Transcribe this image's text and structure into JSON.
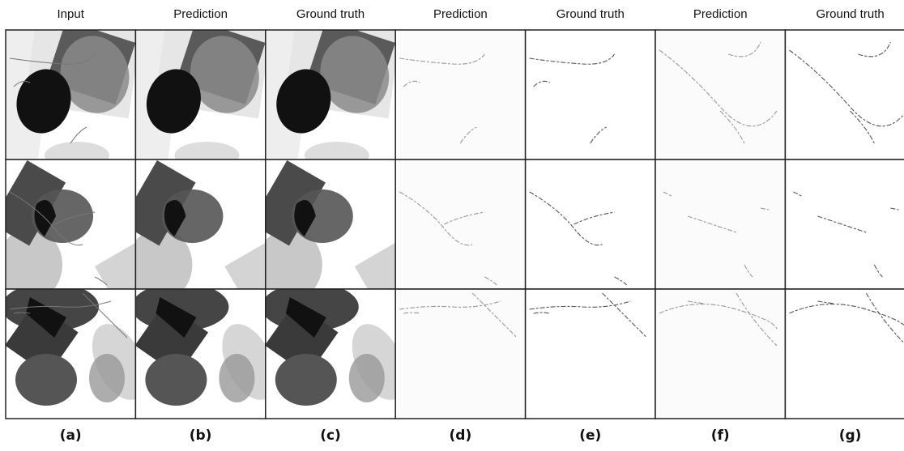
{
  "columns": [
    {
      "header": "Input",
      "label": "(a)"
    },
    {
      "header": "Prediction",
      "label": "(b)"
    },
    {
      "header": "Ground truth",
      "label": "(c)"
    },
    {
      "header": "Prediction",
      "label": "(d)"
    },
    {
      "header": "Ground truth",
      "label": "(e)"
    },
    {
      "header": "Prediction",
      "label": "(f)"
    },
    {
      "header": "Ground truth",
      "label": "(g)"
    }
  ]
}
